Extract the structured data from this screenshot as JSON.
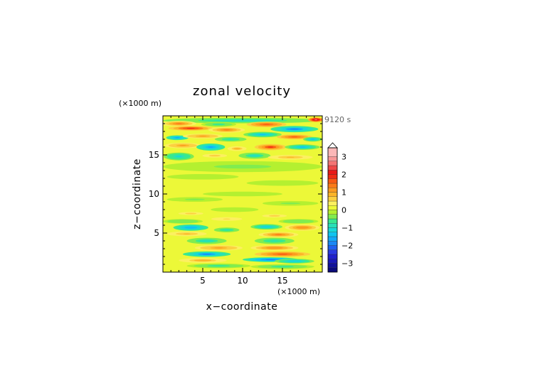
{
  "chart_data": {
    "type": "heatmap",
    "title": "zonal velocity",
    "xlabel": "x−coordinate",
    "ylabel": "z−coordinate",
    "x_unit": "(×1000 m)",
    "y_unit": "(×1000 m)",
    "time_label": "9120 s",
    "xlim": [
      0,
      20
    ],
    "ylim": [
      0,
      20
    ],
    "x_ticks": [
      {
        "value": 5,
        "label": "5"
      },
      {
        "value": 10,
        "label": "10"
      },
      {
        "value": 15,
        "label": "15"
      }
    ],
    "y_ticks": [
      {
        "value": 5,
        "label": "5"
      },
      {
        "value": 10,
        "label": "10"
      },
      {
        "value": 15,
        "label": "15"
      }
    ],
    "color_levels": [
      {
        "min": -3.5,
        "max": -3.25,
        "color": "#0a0a7a"
      },
      {
        "min": -3.25,
        "max": -3.0,
        "color": "#10109a"
      },
      {
        "min": -3.0,
        "max": -2.75,
        "color": "#1818b8"
      },
      {
        "min": -2.75,
        "max": -2.5,
        "color": "#2020cc"
      },
      {
        "min": -2.5,
        "max": -2.25,
        "color": "#2a3ae0"
      },
      {
        "min": -2.25,
        "max": -2.0,
        "color": "#2060f0"
      },
      {
        "min": -2.0,
        "max": -1.75,
        "color": "#1a88f5"
      },
      {
        "min": -1.75,
        "max": -1.5,
        "color": "#12a8f8"
      },
      {
        "min": -1.5,
        "max": -1.25,
        "color": "#10c4f0"
      },
      {
        "min": -1.25,
        "max": -1.0,
        "color": "#18d8d8"
      },
      {
        "min": -1.0,
        "max": -0.75,
        "color": "#28e0b8"
      },
      {
        "min": -0.75,
        "max": -0.5,
        "color": "#38e890"
      },
      {
        "min": -0.5,
        "max": -0.25,
        "color": "#80ec50"
      },
      {
        "min": -0.25,
        "max": 0.0,
        "color": "#b4f030"
      },
      {
        "min": 0.0,
        "max": 0.25,
        "color": "#ecf838"
      },
      {
        "min": 0.25,
        "max": 0.5,
        "color": "#fcf060"
      },
      {
        "min": 0.5,
        "max": 0.75,
        "color": "#fcd040"
      },
      {
        "min": 0.75,
        "max": 1.0,
        "color": "#fcb428"
      },
      {
        "min": 1.0,
        "max": 1.25,
        "color": "#fc9a20"
      },
      {
        "min": 1.25,
        "max": 1.5,
        "color": "#fc7a18"
      },
      {
        "min": 1.5,
        "max": 1.75,
        "color": "#f85a14"
      },
      {
        "min": 1.75,
        "max": 2.0,
        "color": "#f02a14"
      },
      {
        "min": 2.0,
        "max": 2.25,
        "color": "#e81818"
      },
      {
        "min": 2.25,
        "max": 2.5,
        "color": "#f04848"
      },
      {
        "min": 2.5,
        "max": 2.75,
        "color": "#f47474"
      },
      {
        "min": 2.75,
        "max": 3.0,
        "color": "#f89898"
      },
      {
        "min": 3.0,
        "max": 3.5,
        "color": "#fcb8b8"
      }
    ],
    "colorbar_ticks": [
      {
        "value": 3,
        "label": "3"
      },
      {
        "value": 2,
        "label": "2"
      },
      {
        "value": 1,
        "label": "1"
      },
      {
        "value": 0,
        "label": "0"
      },
      {
        "value": -1,
        "label": "−1"
      },
      {
        "value": -2,
        "label": "−2"
      },
      {
        "value": -3,
        "label": "−3"
      }
    ],
    "background_value": 0.1,
    "features": [
      {
        "x": 10,
        "z": 19.4,
        "rx": 10,
        "rz": 0.35,
        "v": -0.9
      },
      {
        "x": 2.0,
        "z": 19.0,
        "rx": 2.2,
        "rz": 0.35,
        "v": 1.4
      },
      {
        "x": 7.0,
        "z": 18.9,
        "rx": 2.2,
        "rz": 0.3,
        "v": -0.6
      },
      {
        "x": 3.5,
        "z": 18.4,
        "rx": 2.8,
        "rz": 0.3,
        "v": 1.9
      },
      {
        "x": 8.0,
        "z": 18.2,
        "rx": 2.3,
        "rz": 0.35,
        "v": 1.3
      },
      {
        "x": 13.0,
        "z": 18.9,
        "rx": 2.5,
        "rz": 0.35,
        "v": 1.6
      },
      {
        "x": 16.5,
        "z": 18.3,
        "rx": 3.0,
        "rz": 0.4,
        "v": -1.8
      },
      {
        "x": 19.2,
        "z": 19.5,
        "rx": 1.0,
        "rz": 0.3,
        "v": 2.6
      },
      {
        "x": 1.8,
        "z": 17.2,
        "rx": 1.4,
        "rz": 0.3,
        "v": -1.7
      },
      {
        "x": 5.0,
        "z": 17.4,
        "rx": 2.5,
        "rz": 0.3,
        "v": 1.1
      },
      {
        "x": 8.5,
        "z": 17.0,
        "rx": 2.0,
        "rz": 0.3,
        "v": -0.8
      },
      {
        "x": 12.5,
        "z": 17.6,
        "rx": 2.4,
        "rz": 0.35,
        "v": -1.3
      },
      {
        "x": 16.5,
        "z": 17.3,
        "rx": 2.2,
        "rz": 0.3,
        "v": 1.7
      },
      {
        "x": 18.8,
        "z": 17.0,
        "rx": 1.2,
        "rz": 0.3,
        "v": -1.4
      },
      {
        "x": 2.5,
        "z": 16.2,
        "rx": 2.3,
        "rz": 0.35,
        "v": 1.0
      },
      {
        "x": 6.0,
        "z": 16.0,
        "rx": 1.8,
        "rz": 0.45,
        "v": -1.6
      },
      {
        "x": 9.3,
        "z": 15.8,
        "rx": 1.2,
        "rz": 0.3,
        "v": 0.9
      },
      {
        "x": 13.5,
        "z": 16.0,
        "rx": 2.0,
        "rz": 0.4,
        "v": 1.8
      },
      {
        "x": 17.5,
        "z": 16.0,
        "rx": 2.2,
        "rz": 0.35,
        "v": -1.3
      },
      {
        "x": 2.0,
        "z": 14.8,
        "rx": 1.9,
        "rz": 0.5,
        "v": -1.1
      },
      {
        "x": 6.5,
        "z": 14.9,
        "rx": 2.0,
        "rz": 0.3,
        "v": 0.7
      },
      {
        "x": 11.5,
        "z": 14.9,
        "rx": 2.0,
        "rz": 0.4,
        "v": -0.9
      },
      {
        "x": 16.0,
        "z": 14.7,
        "rx": 2.8,
        "rz": 0.3,
        "v": 0.8
      },
      {
        "x": 10,
        "z": 13.5,
        "rx": 10,
        "rz": 0.7,
        "v": -0.3
      },
      {
        "x": 5,
        "z": 12.2,
        "rx": 4.5,
        "rz": 0.35,
        "v": -0.2
      },
      {
        "x": 15,
        "z": 11.4,
        "rx": 4.5,
        "rz": 0.35,
        "v": -0.25
      },
      {
        "x": 10,
        "z": 10.0,
        "rx": 5,
        "rz": 0.3,
        "v": -0.2
      },
      {
        "x": 4,
        "z": 9.3,
        "rx": 3.5,
        "rz": 0.3,
        "v": -0.3
      },
      {
        "x": 16,
        "z": 8.8,
        "rx": 3.5,
        "rz": 0.3,
        "v": -0.3
      },
      {
        "x": 9,
        "z": 8.0,
        "rx": 3.0,
        "rz": 0.3,
        "v": -0.25
      },
      {
        "x": 3.5,
        "z": 7.5,
        "rx": 2.0,
        "rz": 0.25,
        "v": 0.6
      },
      {
        "x": 14.0,
        "z": 7.2,
        "rx": 2.0,
        "rz": 0.25,
        "v": 0.6
      },
      {
        "x": 2.5,
        "z": 6.5,
        "rx": 2.5,
        "rz": 0.3,
        "v": -0.5
      },
      {
        "x": 8.0,
        "z": 6.8,
        "rx": 2.5,
        "rz": 0.3,
        "v": 0.5
      },
      {
        "x": 17.0,
        "z": 6.5,
        "rx": 2.5,
        "rz": 0.3,
        "v": -0.5
      },
      {
        "x": 3.5,
        "z": 5.7,
        "rx": 2.2,
        "rz": 0.4,
        "v": -1.5
      },
      {
        "x": 8.0,
        "z": 5.4,
        "rx": 1.6,
        "rz": 0.3,
        "v": -0.8
      },
      {
        "x": 13.0,
        "z": 5.8,
        "rx": 2.0,
        "rz": 0.35,
        "v": -1.2
      },
      {
        "x": 17.5,
        "z": 5.7,
        "rx": 2.2,
        "rz": 0.4,
        "v": 1.2
      },
      {
        "x": 3.0,
        "z": 4.9,
        "rx": 2.5,
        "rz": 0.3,
        "v": 0.8
      },
      {
        "x": 14.5,
        "z": 4.8,
        "rx": 2.5,
        "rz": 0.35,
        "v": 1.4
      },
      {
        "x": 5.5,
        "z": 4.0,
        "rx": 2.5,
        "rz": 0.4,
        "v": -0.9
      },
      {
        "x": 14.0,
        "z": 4.0,
        "rx": 2.5,
        "rz": 0.4,
        "v": -0.8
      },
      {
        "x": 7.0,
        "z": 3.1,
        "rx": 3.0,
        "rz": 0.35,
        "v": 1.1
      },
      {
        "x": 14.0,
        "z": 3.1,
        "rx": 3.0,
        "rz": 0.35,
        "v": 1.2
      },
      {
        "x": 5.5,
        "z": 2.3,
        "rx": 3.0,
        "rz": 0.35,
        "v": -1.8
      },
      {
        "x": 15.0,
        "z": 2.3,
        "rx": 3.5,
        "rz": 0.35,
        "v": 1.6
      },
      {
        "x": 13.5,
        "z": 1.6,
        "rx": 3.5,
        "rz": 0.3,
        "v": -2.0
      },
      {
        "x": 5.0,
        "z": 1.5,
        "rx": 3.0,
        "rz": 0.3,
        "v": 0.9
      },
      {
        "x": 16.5,
        "z": 1.4,
        "rx": 2.5,
        "rz": 0.3,
        "v": -1.2
      },
      {
        "x": 7.0,
        "z": 0.8,
        "rx": 4.0,
        "rz": 0.3,
        "v": -0.6
      },
      {
        "x": 15.0,
        "z": 0.7,
        "rx": 4.0,
        "rz": 0.3,
        "v": -0.7
      }
    ]
  }
}
